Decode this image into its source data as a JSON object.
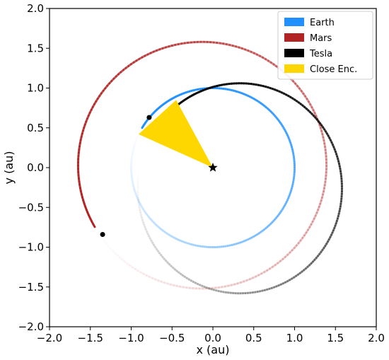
{
  "chart_data": {
    "type": "line",
    "xlabel": "x (au)",
    "ylabel": "y (au)",
    "xlim": [
      -2.0,
      2.0
    ],
    "ylim": [
      -2.0,
      2.0
    ],
    "grid": false,
    "legend_placement": "top-right",
    "x_ticks": [
      "−2.0",
      "−1.5",
      "−1.0",
      "−0.5",
      "0.0",
      "0.5",
      "1.0",
      "1.5",
      "2.0"
    ],
    "y_ticks": [
      "−2.0",
      "−1.5",
      "−1.0",
      "−0.5",
      "0.0",
      "0.5",
      "1.0",
      "1.5",
      "2.0"
    ],
    "sun": {
      "x": 0.0,
      "y": 0.0,
      "marker": "star"
    },
    "series": [
      {
        "name": "Earth",
        "color": "#1e90ff",
        "orbit": {
          "cx": 0.0,
          "cy": 0.0,
          "a": 1.0,
          "b": 1.0
        },
        "fade_start_deg": 150,
        "fade_sweep_deg": -360
      },
      {
        "name": "Mars",
        "color": "#b22222",
        "orbit": {
          "cx": -0.13,
          "cy": 0.03,
          "a": 1.52,
          "b": 1.55
        },
        "fade_start_deg": 210,
        "fade_sweep_deg": -358,
        "marker": {
          "x": -1.35,
          "y": -0.84
        }
      },
      {
        "name": "Tesla",
        "color": "#000000",
        "orbit": {
          "cx": 0.33,
          "cy": -0.26,
          "a": 1.25,
          "b": 1.32
        },
        "fade_start_deg": 140,
        "fade_sweep_deg": -330,
        "marker": {
          "x": -0.78,
          "y": 0.63
        }
      },
      {
        "name": "Close Enc.",
        "color": "#ffd700",
        "wedge": [
          [
            0.0,
            0.0
          ],
          [
            -0.91,
            0.42
          ],
          [
            -0.45,
            0.85
          ]
        ]
      }
    ]
  }
}
